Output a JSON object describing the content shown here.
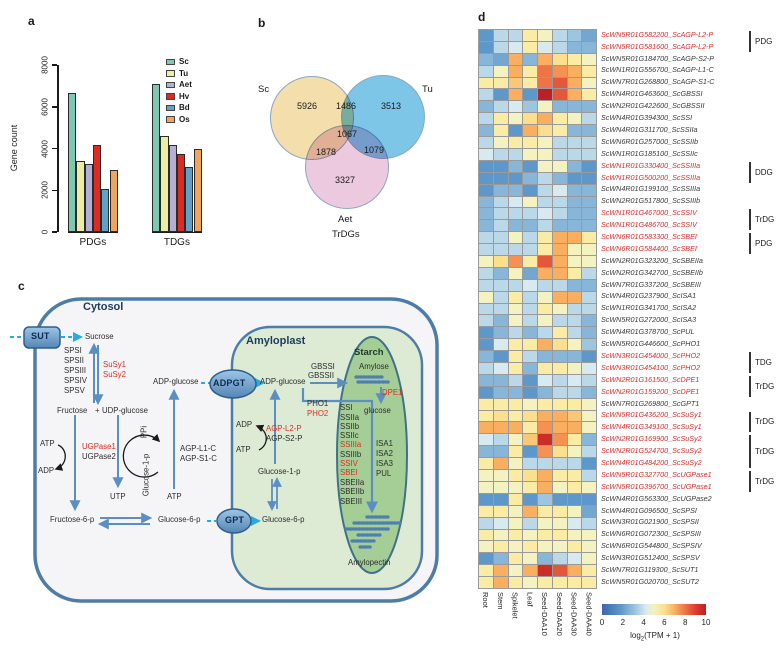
{
  "panels": {
    "a": "a",
    "b": "b",
    "c": "c",
    "d": "d"
  },
  "chart_data": {
    "bar": {
      "type": "bar",
      "ylabel": "Gene count",
      "ylim": [
        0,
        8000
      ],
      "yticks": [
        0,
        2000,
        4000,
        6000,
        8000
      ],
      "groups": [
        "PDGs",
        "TDGs"
      ],
      "legend_position": "top-right",
      "series": [
        {
          "name": "Sc",
          "color": "#7EC8AF",
          "values": [
            6650,
            7100
          ]
        },
        {
          "name": "Tu",
          "color": "#EDECA5",
          "values": [
            3400,
            4600
          ]
        },
        {
          "name": "Aet",
          "color": "#B4B0D3",
          "values": [
            3250,
            4150
          ]
        },
        {
          "name": "Hv",
          "color": "#DC2B22",
          "values": [
            4150,
            3750
          ]
        },
        {
          "name": "Bd",
          "color": "#62A0C6",
          "values": [
            2050,
            3100
          ]
        },
        {
          "name": "Os",
          "color": "#F2A45D",
          "values": [
            2950,
            4000
          ]
        }
      ]
    },
    "venn": {
      "type": "venn",
      "sets": [
        "Sc",
        "Tu",
        "Aet"
      ],
      "caption": "TrDGs",
      "set_colors": {
        "sc": "#F3DEAC",
        "tu": "#7EC6E8",
        "aet": "#ECC9DF"
      },
      "regions": {
        "sc_only": 5926,
        "sc_tu": 1486,
        "tu_only": 3513,
        "center": 1067,
        "sc_aet": 1878,
        "tu_aet": 1079,
        "aet_only": 3327
      }
    },
    "heatmap": {
      "type": "heatmap",
      "columns": [
        "Root",
        "Stem",
        "Spikelet",
        "Leaf",
        "Seed-DAA10",
        "Seed-DAA20",
        "Seed-DAA30",
        "Seed-DAA40"
      ],
      "rows": [
        {
          "label": "ScWN5R01G582200_ScAGP-L2-P",
          "highlight": true
        },
        {
          "label": "ScWN5R01G581600_ScAGP-L2-P",
          "highlight": true
        },
        {
          "label": "ScWN5R01G184700_ScAGP-S2-P",
          "highlight": false
        },
        {
          "label": "ScWN1R01G556700_ScAGP-L1-C",
          "highlight": false
        },
        {
          "label": "ScWN7R01G268800_ScAGP-S1-C",
          "highlight": false
        },
        {
          "label": "ScWN4R01G463600_ScGBSSI",
          "highlight": false
        },
        {
          "label": "ScWN2R01G422600_ScGBSSII",
          "highlight": false
        },
        {
          "label": "ScWN4R01G394300_ScSSI",
          "highlight": false
        },
        {
          "label": "ScWN4R01G311700_ScSSIIa",
          "highlight": false
        },
        {
          "label": "ScWN6R01G257000_ScSSIIb",
          "highlight": false
        },
        {
          "label": "ScWN1R01G185100_ScSSIIc",
          "highlight": false
        },
        {
          "label": "ScWN1R01G330400_ScSSIIIa",
          "highlight": true
        },
        {
          "label": "ScWN1R01G500200_ScSSIIIa",
          "highlight": true
        },
        {
          "label": "ScWN4R01G199100_ScSSIIIa",
          "highlight": false
        },
        {
          "label": "ScWN2R01G517800_ScSSIIIb",
          "highlight": false
        },
        {
          "label": "ScWN1R01G467000_ScSSIV",
          "highlight": true
        },
        {
          "label": "ScWN1R01G486700_ScSSIV",
          "highlight": true
        },
        {
          "label": "ScWN6R01G583300_ScSBEI",
          "highlight": true
        },
        {
          "label": "ScWN6R01G584400_ScSBEI",
          "highlight": true
        },
        {
          "label": "ScWN2R01G323200_ScSBEIIa",
          "highlight": false
        },
        {
          "label": "ScWN2R01G342700_ScSBEIIb",
          "highlight": false
        },
        {
          "label": "ScWN7R01G337200_ScSBEIII",
          "highlight": false
        },
        {
          "label": "ScWN4R01G237900_ScISA1",
          "highlight": false
        },
        {
          "label": "ScWN1R01G341700_ScISA2",
          "highlight": false
        },
        {
          "label": "ScWN5R01G272000_ScISA3",
          "highlight": false
        },
        {
          "label": "ScWN4R01G378700_ScPUL",
          "highlight": false
        },
        {
          "label": "ScWN5R01G446600_ScPHO1",
          "highlight": false
        },
        {
          "label": "ScWN3R01G454000_ScPHO2",
          "highlight": true
        },
        {
          "label": "ScWN3R01G454100_ScPHO2",
          "highlight": true
        },
        {
          "label": "ScWN2R01G161500_ScDPE1",
          "highlight": true
        },
        {
          "label": "ScWN2R01G159200_ScDPE1",
          "highlight": true
        },
        {
          "label": "ScWN7R01G269800_ScGPT1",
          "highlight": false
        },
        {
          "label": "ScWN5R01G436200_ScSuSy1",
          "highlight": true
        },
        {
          "label": "ScWN4R01G349100_ScSuSy1",
          "highlight": true
        },
        {
          "label": "ScWN2R01G169900_ScSuSy2",
          "highlight": true
        },
        {
          "label": "ScWN2R01G524700_ScSuSy2",
          "highlight": true
        },
        {
          "label": "ScWN4R01G484200_ScSuSy2",
          "highlight": true
        },
        {
          "label": "ScWN5R01G327700_ScUGPase1",
          "highlight": true
        },
        {
          "label": "ScWN5R01G396700_ScUGPase1",
          "highlight": true
        },
        {
          "label": "ScWN4R01G563300_ScUGPase2",
          "highlight": false
        },
        {
          "label": "ScWN4R01G096500_ScSPSI",
          "highlight": false
        },
        {
          "label": "ScWN3R01G021900_ScSPSII",
          "highlight": false
        },
        {
          "label": "ScWN6R01G072300_ScSPSIII",
          "highlight": false
        },
        {
          "label": "ScWN6R01G544800_ScSPSIV",
          "highlight": false
        },
        {
          "label": "ScWN3R01G512400_ScSPSV",
          "highlight": false
        },
        {
          "label": "ScWN7R01G119300_ScSUT1",
          "highlight": false
        },
        {
          "label": "ScWN5R01G020700_ScSUT2",
          "highlight": false
        }
      ],
      "values": [
        [
          2,
          4,
          4,
          5.5,
          5,
          4,
          3.5,
          2.5
        ],
        [
          2,
          4,
          4.5,
          5.5,
          4.5,
          4,
          3,
          3
        ],
        [
          3,
          2.5,
          7,
          3,
          7,
          6,
          5.5,
          5
        ],
        [
          4,
          5,
          7,
          5.5,
          8,
          7.5,
          7,
          5.5
        ],
        [
          5.5,
          5.5,
          6.5,
          5.5,
          8,
          8.5,
          7,
          5
        ],
        [
          4,
          2,
          7,
          2,
          10,
          8.5,
          7,
          5.5
        ],
        [
          3,
          4,
          4.5,
          3.5,
          5,
          3,
          3,
          3
        ],
        [
          4,
          5.5,
          5,
          6,
          7,
          5.5,
          5,
          4
        ],
        [
          3,
          5.5,
          2,
          7,
          6,
          5.5,
          3,
          3
        ],
        [
          4,
          5,
          5.5,
          5.5,
          5,
          4,
          4,
          4
        ],
        [
          4.5,
          4,
          4,
          5,
          5,
          4,
          4,
          4
        ],
        [
          2,
          2,
          3,
          2,
          5,
          5,
          3,
          2
        ],
        [
          2,
          2,
          2,
          3,
          4,
          3,
          2,
          2
        ],
        [
          2,
          3,
          3,
          2,
          4,
          4.5,
          3,
          3
        ],
        [
          3,
          4,
          4.5,
          5,
          4,
          4,
          3,
          3
        ],
        [
          3,
          4,
          4,
          4,
          4.5,
          4,
          3,
          3
        ],
        [
          3,
          4,
          3,
          3,
          4,
          3,
          3,
          3
        ],
        [
          4,
          4,
          5,
          4,
          5.5,
          7,
          7,
          5.5
        ],
        [
          4,
          4,
          4,
          4,
          5.5,
          7,
          5,
          5
        ],
        [
          5,
          6,
          7.5,
          5.5,
          8.5,
          7,
          5,
          5
        ],
        [
          4,
          3,
          5,
          2.5,
          7,
          7,
          5.5,
          4
        ],
        [
          4,
          4,
          4,
          4.5,
          4,
          4,
          3,
          3
        ],
        [
          5,
          4,
          5.5,
          4,
          5,
          7,
          7,
          4
        ],
        [
          4,
          4,
          5,
          4,
          5.5,
          5,
          4,
          4
        ],
        [
          4,
          3,
          5,
          4,
          5,
          4,
          4,
          3
        ],
        [
          2,
          3,
          4,
          3,
          4,
          5.5,
          4,
          3
        ],
        [
          2,
          4.5,
          5.5,
          5.5,
          7,
          6,
          5,
          3.5
        ],
        [
          3,
          2,
          5.5,
          4,
          3,
          3,
          3,
          2
        ],
        [
          4,
          4.5,
          5.5,
          3,
          5.5,
          5.5,
          5,
          4.5
        ],
        [
          3,
          3,
          4,
          2,
          4.5,
          4,
          4.5,
          4
        ],
        [
          2,
          3,
          3,
          2,
          3,
          4,
          4,
          3
        ],
        [
          5.5,
          5.5,
          5.5,
          5,
          5.5,
          5.5,
          5.5,
          5
        ],
        [
          5.5,
          6,
          5.5,
          6,
          7,
          7,
          6.5,
          5
        ],
        [
          7,
          7,
          7,
          5.5,
          7.5,
          7,
          7,
          5
        ],
        [
          4.5,
          4,
          5,
          6.5,
          9.5,
          7.5,
          5.5,
          3
        ],
        [
          3,
          3,
          5.5,
          2,
          7.5,
          6,
          5,
          4
        ],
        [
          5.5,
          7,
          5,
          4,
          4,
          4,
          4,
          2
        ],
        [
          5,
          5,
          5.5,
          6,
          7,
          5.5,
          5.5,
          4
        ],
        [
          5,
          5,
          5,
          5.5,
          7,
          5,
          5.5,
          5
        ],
        [
          2,
          2,
          5.5,
          2,
          3.5,
          2,
          2,
          2
        ],
        [
          5.5,
          5.5,
          5,
          7,
          5.5,
          5.5,
          5,
          2.5
        ],
        [
          4,
          4.5,
          5,
          4,
          5,
          5,
          4.5,
          4
        ],
        [
          5.5,
          5,
          5.5,
          5,
          5.5,
          5.5,
          5,
          5
        ],
        [
          5,
          5.5,
          5,
          5.5,
          5,
          5,
          5.5,
          5
        ],
        [
          2,
          3,
          5.5,
          5,
          3,
          4,
          4.5,
          5
        ],
        [
          5.5,
          7,
          5,
          7,
          9.5,
          8.5,
          7,
          5.5
        ],
        [
          5.5,
          7,
          5.5,
          5,
          5.5,
          5.5,
          5.5,
          5.5
        ]
      ],
      "groups": [
        {
          "from": 0,
          "to": 1,
          "label": "PDG"
        },
        {
          "from": 11,
          "to": 12,
          "label": "DDG"
        },
        {
          "from": 15,
          "to": 16,
          "label": "TrDG"
        },
        {
          "from": 17,
          "to": 18,
          "label": "PDG"
        },
        {
          "from": 27,
          "to": 28,
          "label": "TDG"
        },
        {
          "from": 29,
          "to": 30,
          "label": "TrDG"
        },
        {
          "from": 32,
          "to": 33,
          "label": "TrDG"
        },
        {
          "from": 34,
          "to": 36,
          "label": "TrDG"
        },
        {
          "from": 37,
          "to": 38,
          "label": "TrDG"
        }
      ],
      "colorbar": {
        "min": 0,
        "max": 10,
        "ticks": [
          0,
          2,
          4,
          6,
          8,
          10
        ],
        "label_pre": "log",
        "label_sub": "2",
        "label_post": "(TPM + 1)"
      }
    }
  },
  "pathway": {
    "red_keys": [
      "susy1",
      "susy2",
      "ugpase1",
      "dpe1",
      "pho2",
      "agp_l2_p",
      "ssiiia",
      "ssiv",
      "sbei"
    ],
    "labels": {
      "cytosol": "Cytosol",
      "amyloplast": "Amyloplast",
      "starch": "Starch",
      "sut": "SUT",
      "adpgt": "ADPGT",
      "gpt": "GPT",
      "sucrose": "Sucrose",
      "sps1": "SPSI",
      "sps2": "SPSII",
      "sps3": "SPSIII",
      "sps4": "SPSIV",
      "sps5": "SPSV",
      "susy1": "SuSy1",
      "susy2": "SuSy2",
      "fructose": "Fructose",
      "plus": "+",
      "udp_glucose": "UDP-glucose",
      "atp_cyt1": "ATP",
      "adp_cyt1": "ADP",
      "ugpase1": "UGPase1",
      "ugpase2": "UGPase2",
      "utp": "UTP",
      "ppi": "PPi",
      "glucose_1p_cyt": "Glucose-1-p",
      "agp_l1_c": "AGP-L1-C",
      "agp_s1_c": "AGP-S1-C",
      "atp_cyt2": "ATP",
      "fructose_6p": "Fructose-6-p",
      "glucose_6p_cyt": "Glucose-6-p",
      "adp_glucose_cyt": "ADP-glucose",
      "adp_glucose_amy": "ADP-glucose",
      "gbssi": "GBSSI",
      "gbssii": "GBSSII",
      "amylose": "Amylose",
      "dpe1": "DPE1",
      "glucose_amy": "glucose",
      "pho1": "PHO1",
      "pho2": "PHO2",
      "adp_amy": "ADP",
      "atp_amy": "ATP",
      "agp_l2_p": "AGP-L2-P",
      "agp_s2_p": "AGP-S2-P",
      "glucose_1p_amy": "Glucose-1-p",
      "glucose_6p_amy": "Glucose-6-p",
      "ssi": "SSI",
      "ssiia": "SSIIa",
      "ssiib": "SSIIb",
      "ssiic": "SSIIc",
      "ssiiia": "SSIIIa",
      "ssiiib": "SSIIIb",
      "ssiv": "SSIV",
      "sbei": "SBEI",
      "sbeiia": "SBEIIa",
      "sbeiib": "SBEIIb",
      "sbeiii": "SBEIII",
      "isa1": "ISA1",
      "isa2": "ISA2",
      "isa3": "ISA3",
      "pul": "PUL",
      "amylopectin": "Amylopectin"
    }
  }
}
